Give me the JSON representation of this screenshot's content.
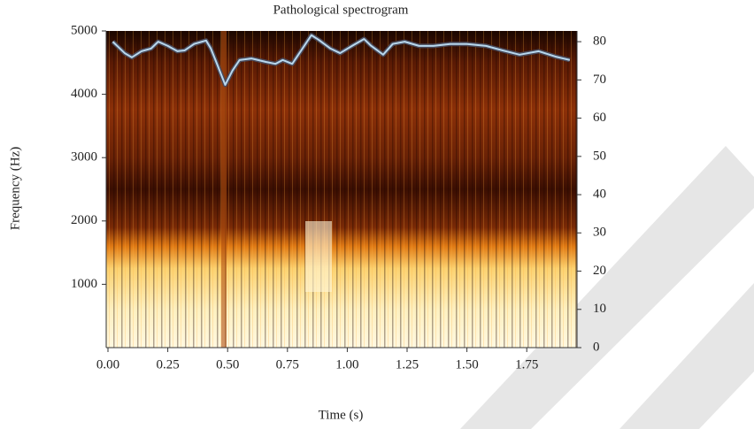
{
  "chart_data": {
    "type": "line",
    "title": "Pathological spectrogram",
    "x_label": "Time (s)",
    "y_label": "Frequency (Hz)",
    "x": [
      0.02,
      0.07,
      0.1,
      0.14,
      0.18,
      0.21,
      0.25,
      0.29,
      0.32,
      0.36,
      0.41,
      0.43,
      0.46,
      0.49,
      0.52,
      0.55,
      0.6,
      0.66,
      0.7,
      0.73,
      0.77,
      0.8,
      0.85,
      0.88,
      0.93,
      0.97,
      1.02,
      1.07,
      1.1,
      1.15,
      1.19,
      1.24,
      1.3,
      1.36,
      1.43,
      1.5,
      1.58,
      1.65,
      1.72,
      1.8,
      1.87,
      1.93
    ],
    "series": [
      {
        "color": "#b8d8ee",
        "axis": "y2",
        "values": [
          80.0,
          77.0,
          75.9,
          77.5,
          78.2,
          80.0,
          78.9,
          77.5,
          77.7,
          79.4,
          80.3,
          78.2,
          73.5,
          68.7,
          72.4,
          75.2,
          75.6,
          74.7,
          74.2,
          75.2,
          74.2,
          77.0,
          81.7,
          80.5,
          78.2,
          77.0,
          78.9,
          80.7,
          78.9,
          76.6,
          79.4,
          80.0,
          78.9,
          78.9,
          79.4,
          79.4,
          78.9,
          77.7,
          76.6,
          77.5,
          76.1,
          75.2
        ]
      }
    ],
    "xlim": [
      0,
      1.96
    ],
    "xticks": [
      {
        "value": 0,
        "label": "0.00"
      },
      {
        "value": 0.25,
        "label": "0.25"
      },
      {
        "value": 0.5,
        "label": "0.50"
      },
      {
        "value": 0.75,
        "label": "0.75"
      },
      {
        "value": 1,
        "label": "1.00"
      },
      {
        "value": 1.25,
        "label": "1.25"
      },
      {
        "value": 1.5,
        "label": "1.50"
      },
      {
        "value": 1.75,
        "label": "1.75"
      }
    ],
    "ylim": [
      0,
      5000
    ],
    "yticks": [
      1000,
      2000,
      3000,
      4000,
      5000
    ],
    "y2lim": [
      0,
      82.8
    ],
    "y2ticks": [
      0,
      10,
      20,
      30,
      40,
      50,
      60,
      70,
      80
    ]
  }
}
